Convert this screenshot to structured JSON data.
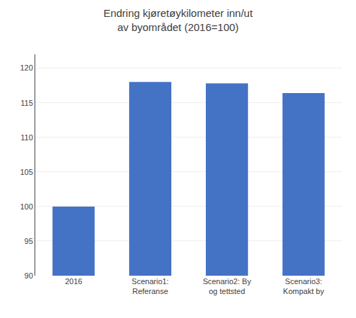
{
  "chart_data": {
    "type": "bar",
    "title": "Endring kjøretøykilometer inn/ut\nav byområdet (2016=100)",
    "categories": [
      "2016",
      "Scenario1:\nReferanse",
      "Scenario2: By\nog tettsted",
      "Scenario3:\nKompakt by"
    ],
    "values": [
      100,
      118.0,
      117.8,
      116.4
    ],
    "color": "#4472C4",
    "ylim": [
      90,
      122
    ],
    "yticks": [
      90,
      95,
      100,
      105,
      110,
      115,
      120
    ],
    "grid": true
  }
}
